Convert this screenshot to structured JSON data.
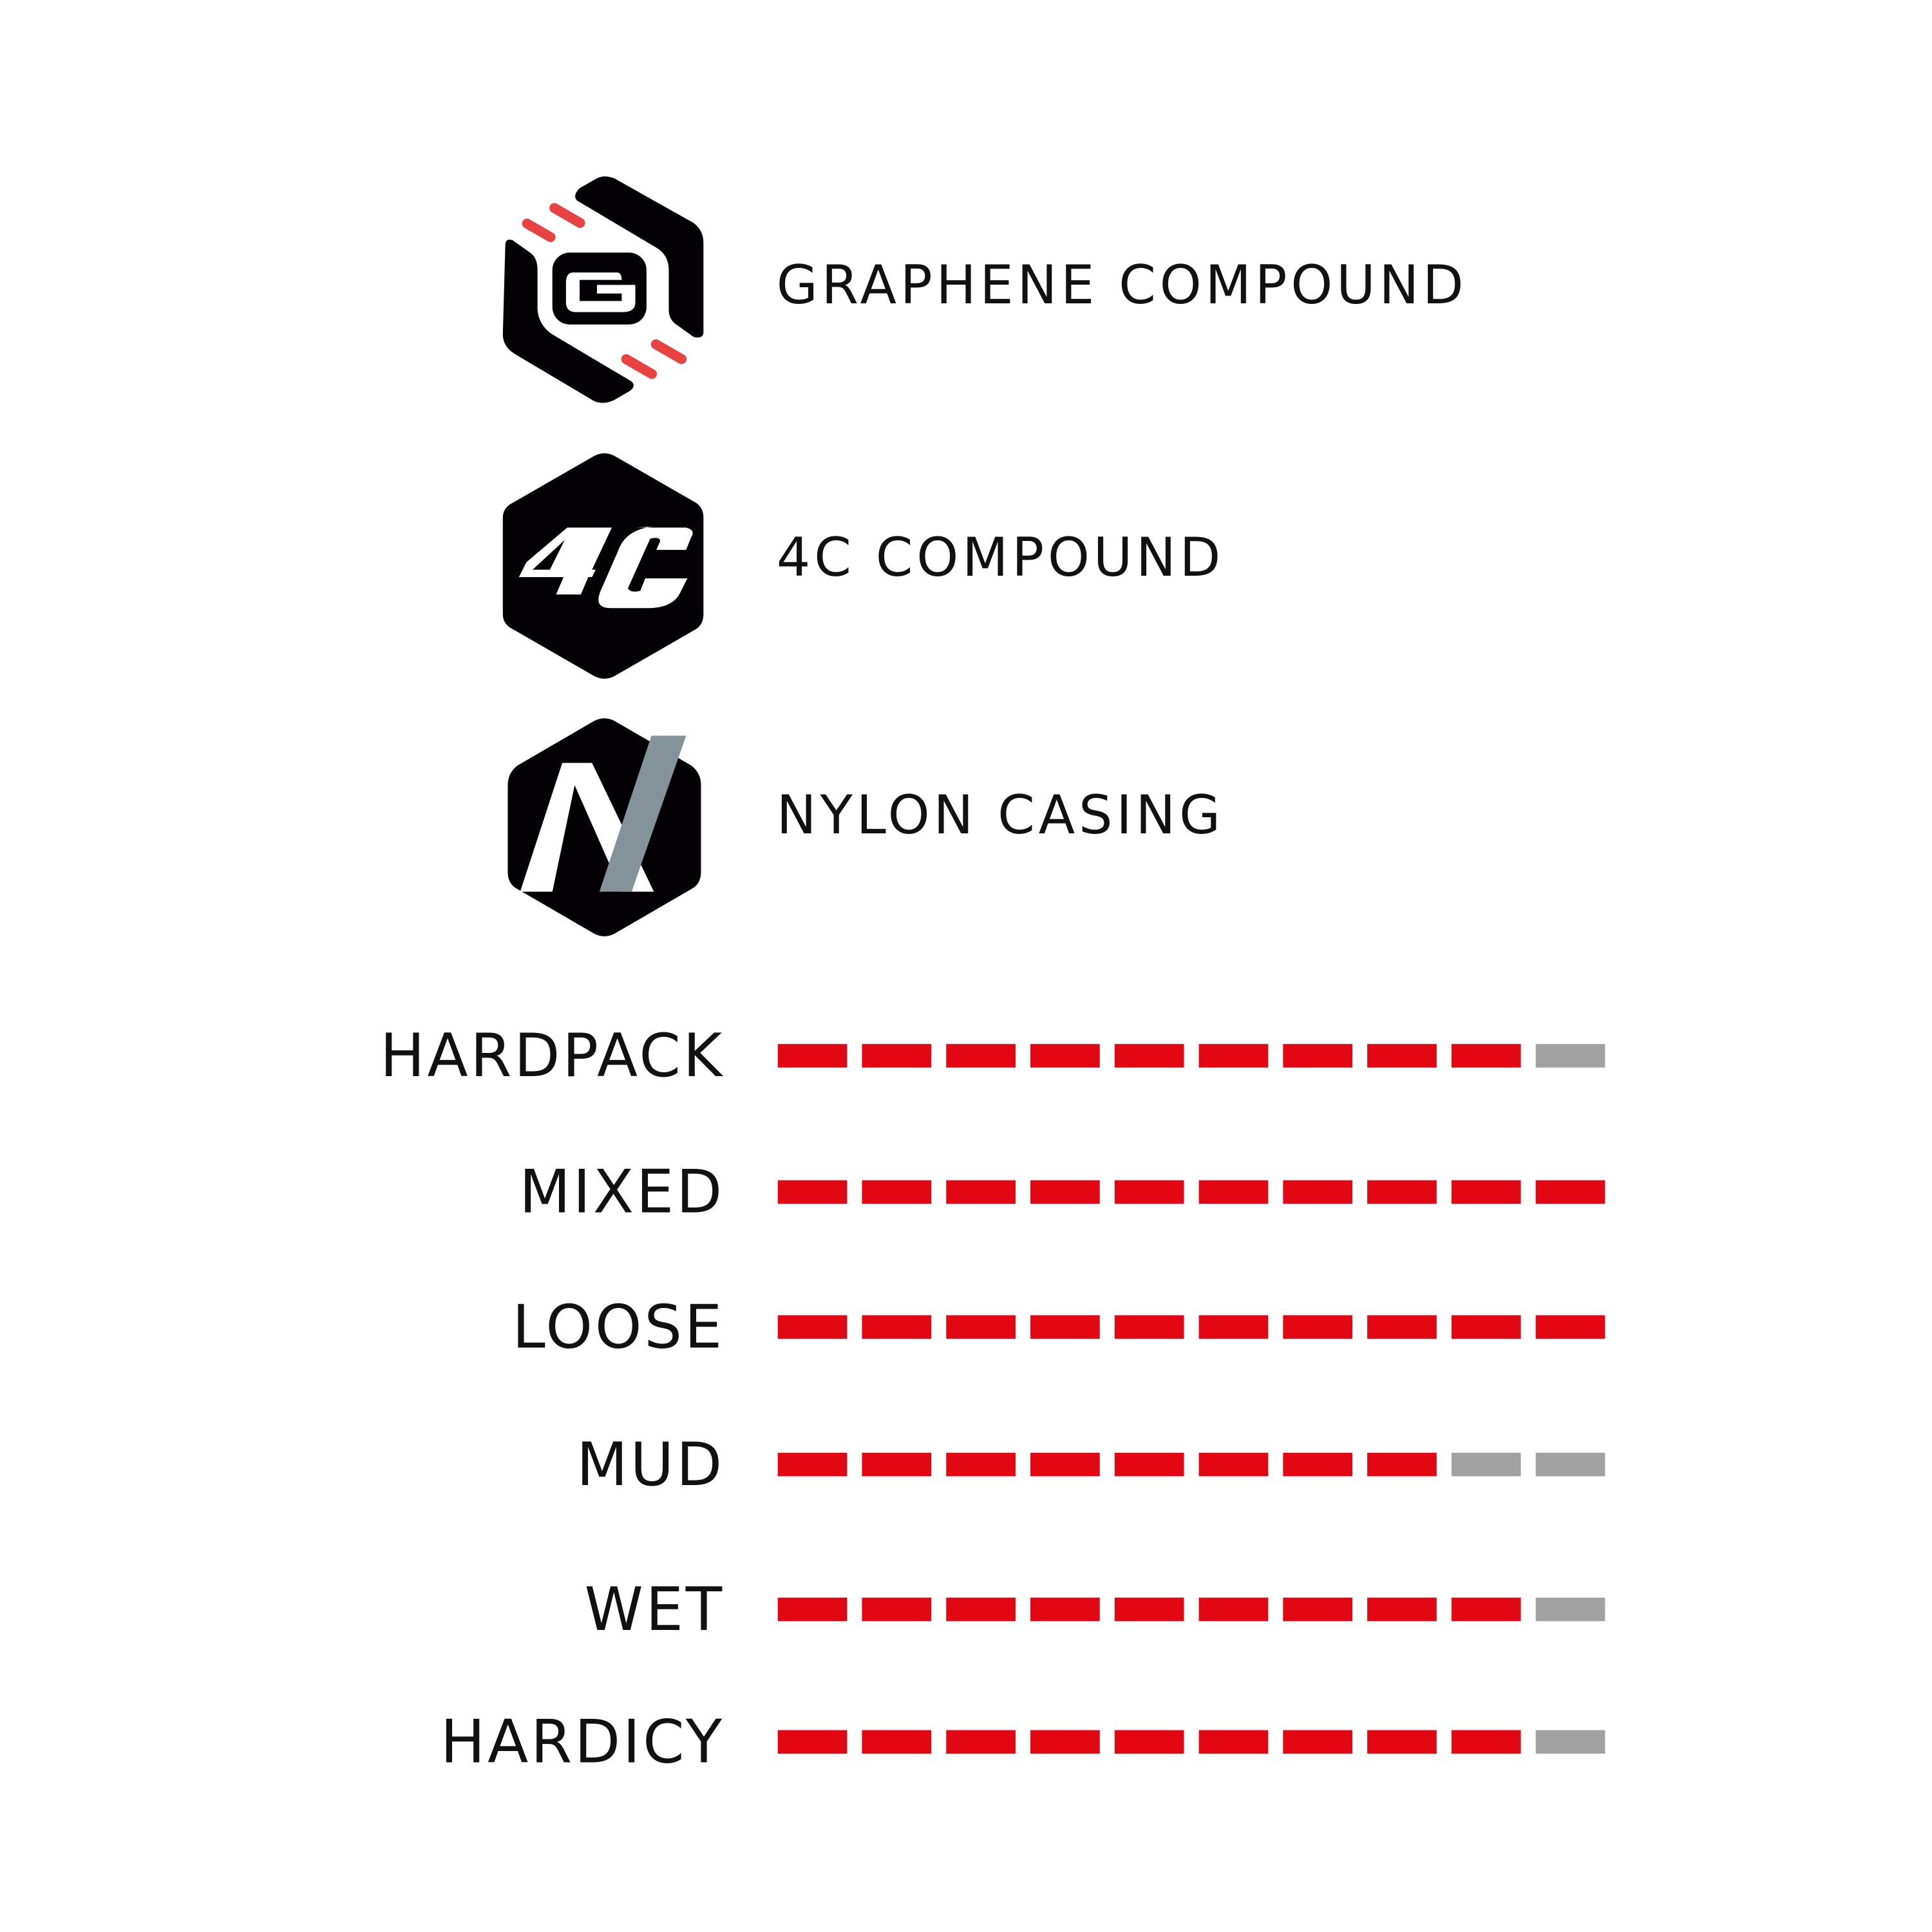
{
  "features": [
    {
      "label": "GRAPHENE COMPOUND",
      "icon": "graphene-g-hexagon-icon"
    },
    {
      "label": "4C COMPOUND",
      "icon": "4c-hexagon-icon"
    },
    {
      "label": "NYLON CASING",
      "icon": "nylon-n-hexagon-icon"
    }
  ],
  "ratings": {
    "max": 10,
    "filled_color": "#e30613",
    "empty_color": "#a3a2a3",
    "items": [
      {
        "label": "HARDPACK",
        "value": 9
      },
      {
        "label": "MIXED",
        "value": 10
      },
      {
        "label": "LOOSE",
        "value": 10
      },
      {
        "label": "MUD",
        "value": 8
      },
      {
        "label": "WET",
        "value": 9
      },
      {
        "label": "HARDICY",
        "value": 9
      }
    ]
  },
  "colors": {
    "accent_red": "#e84242",
    "icon_black": "#030104",
    "nylon_grey": "#84929a"
  }
}
